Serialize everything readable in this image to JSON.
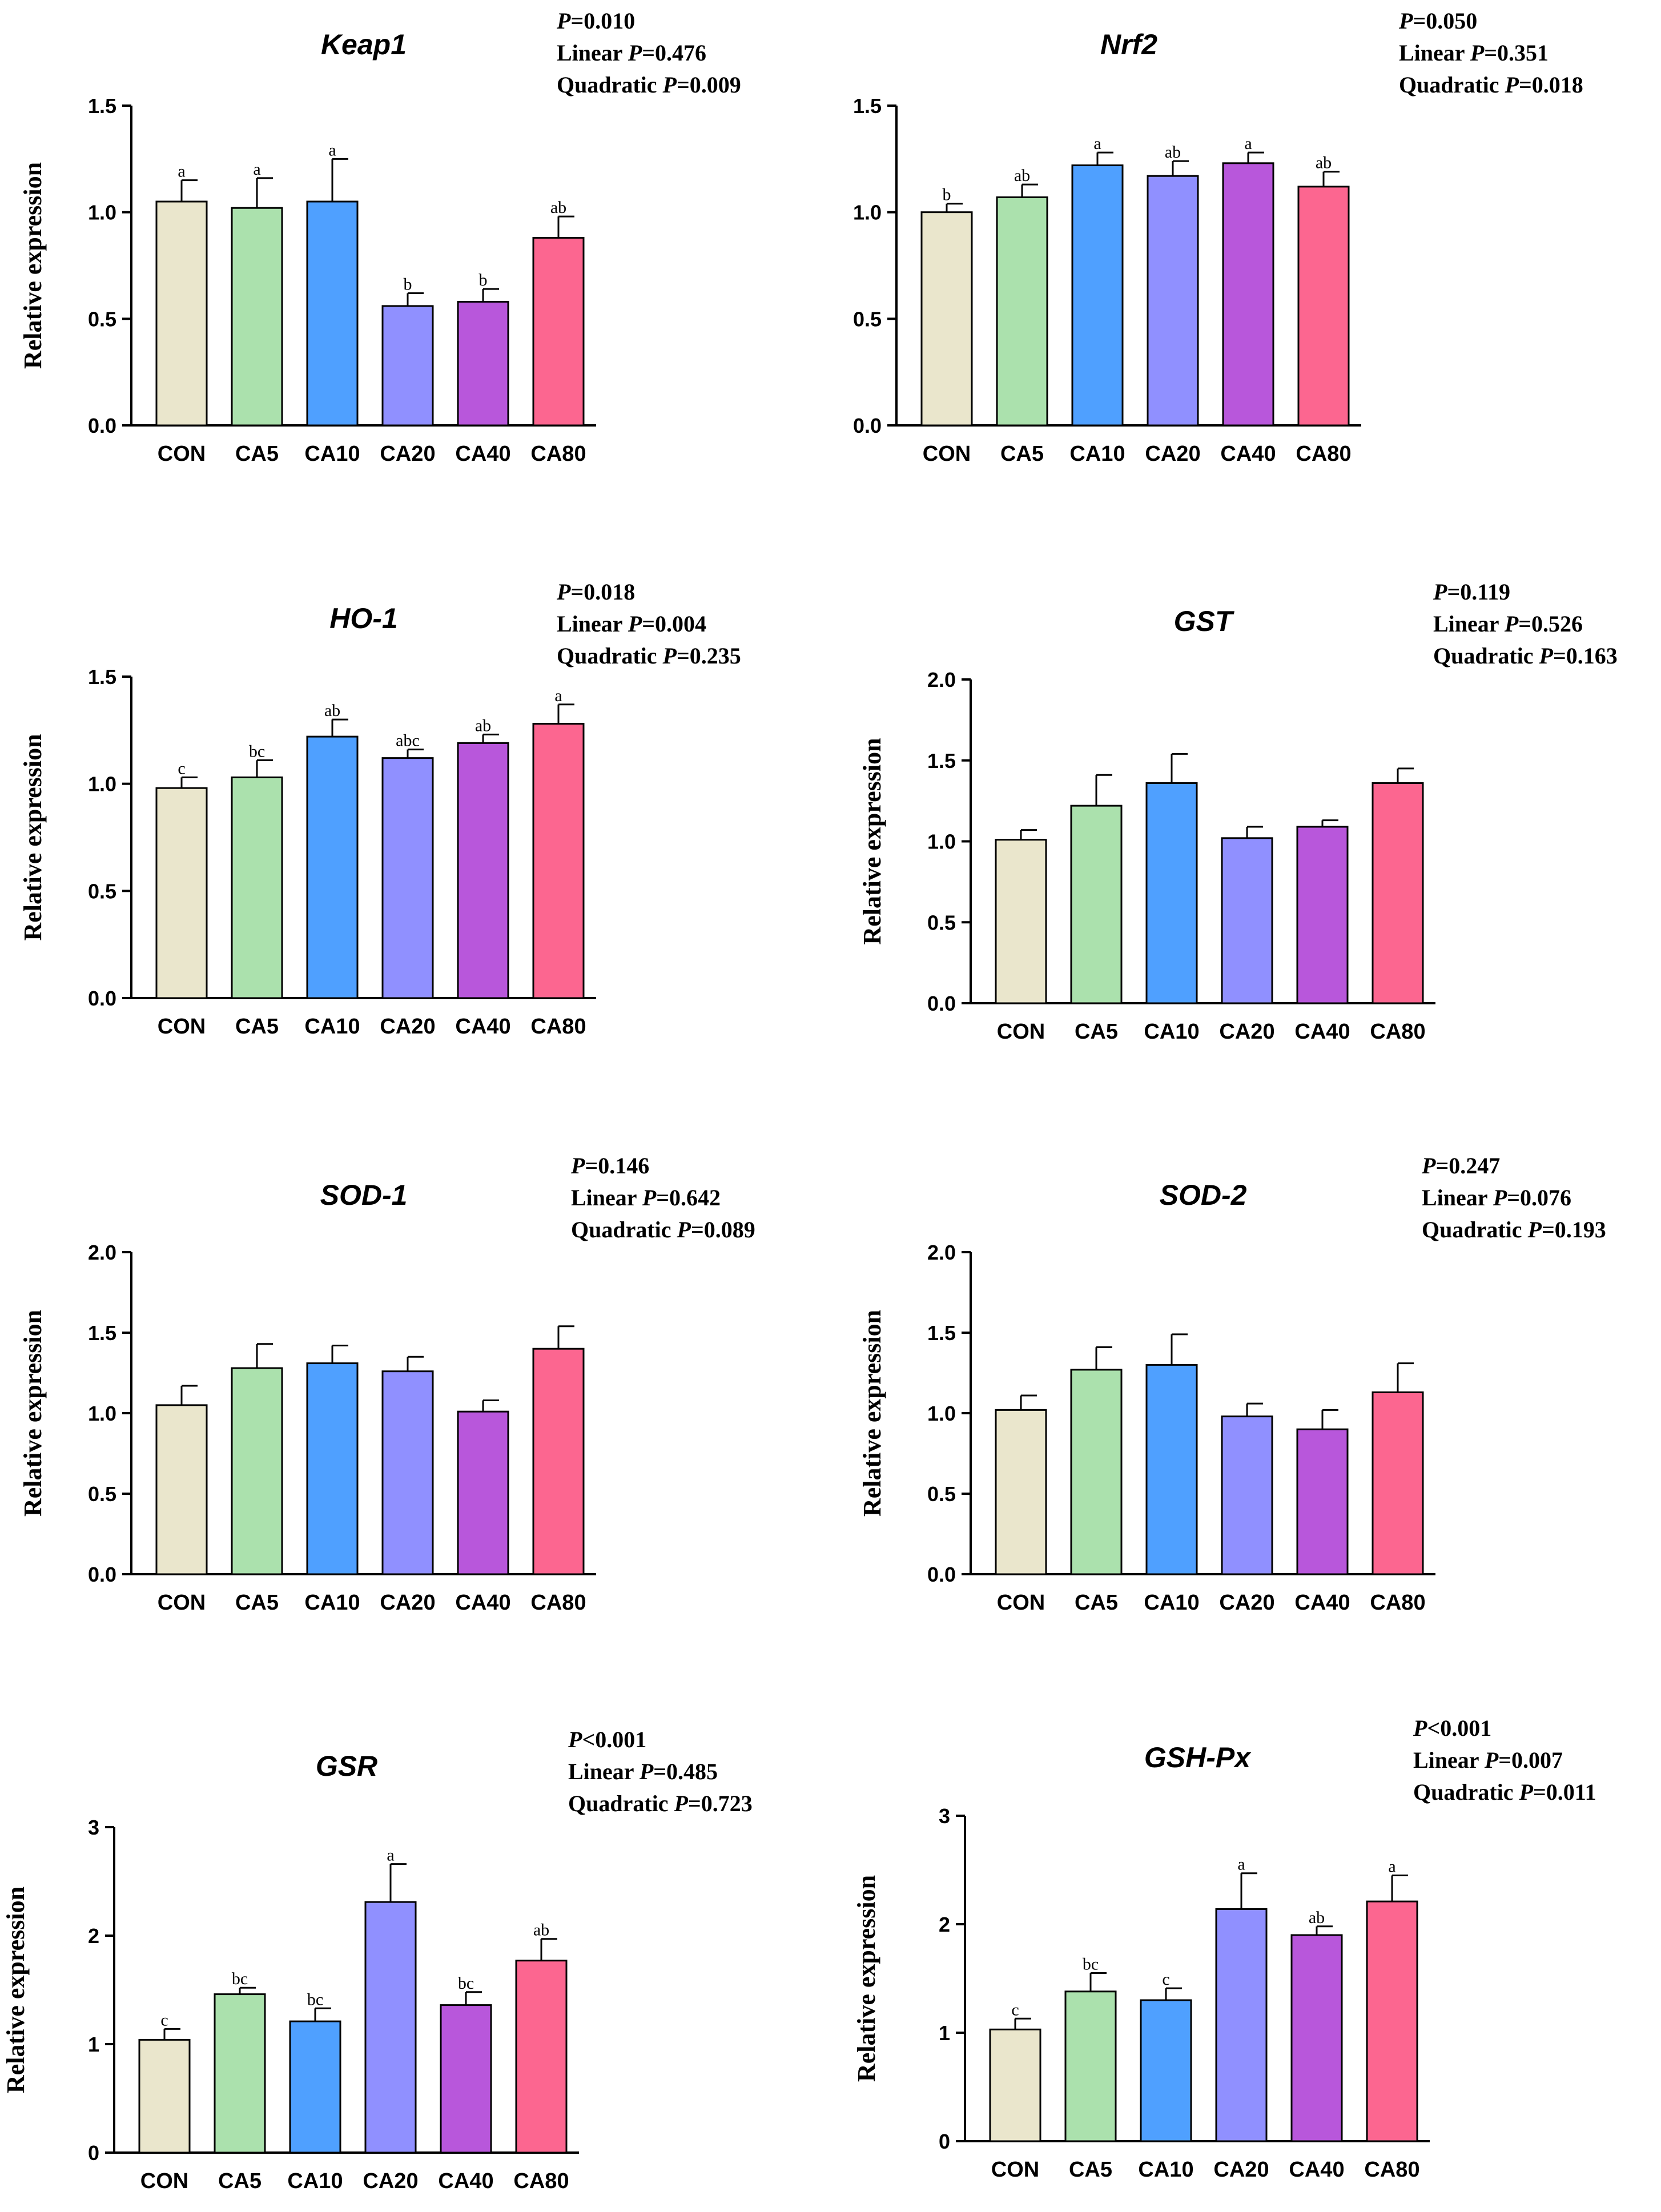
{
  "colors": [
    "#EAE6CC",
    "#ABE1AD",
    "#4FA0FF",
    "#9090FF",
    "#B857DB",
    "#FC6690"
  ],
  "chart_data": [
    {
      "type": "bar",
      "title": "Keap1",
      "stats": [
        "=0.010",
        "Linear ",
        "=0.476",
        "Quadratic ",
        "=0.009"
      ],
      "xlabel": "",
      "ylabel": "Relative expression",
      "ylim": [
        0,
        1.5
      ],
      "yticks": [
        "0.0",
        "0.5",
        "1.0",
        "1.5"
      ],
      "categories": [
        "CON",
        "CA5",
        "CA10",
        "CA20",
        "CA40",
        "CA80"
      ],
      "values": [
        1.05,
        1.02,
        1.05,
        0.56,
        0.58,
        0.88
      ],
      "errors": [
        0.1,
        0.14,
        0.2,
        0.06,
        0.06,
        0.1
      ],
      "letters": [
        "a",
        "a",
        "a",
        "b",
        "b",
        "ab"
      ]
    },
    {
      "type": "bar",
      "title": "Nrf2",
      "stats": [
        "=0.050",
        "Linear ",
        "=0.351",
        "Quadratic ",
        "=0.018"
      ],
      "xlabel": "",
      "ylabel": "Relative expression",
      "ylim": [
        0,
        1.5
      ],
      "yticks": [
        "0.0",
        "0.5",
        "1.0",
        "1.5"
      ],
      "categories": [
        "CON",
        "CA5",
        "CA10",
        "CA20",
        "CA40",
        "CA80"
      ],
      "values": [
        1.0,
        1.07,
        1.22,
        1.17,
        1.23,
        1.12
      ],
      "errors": [
        0.04,
        0.06,
        0.06,
        0.07,
        0.05,
        0.07
      ],
      "letters": [
        "b",
        "ab",
        "a",
        "ab",
        "a",
        "ab"
      ]
    },
    {
      "type": "bar",
      "title": "HO-1",
      "stats": [
        "=0.018",
        "Linear ",
        "=0.004",
        "Quadratic ",
        "=0.235"
      ],
      "xlabel": "",
      "ylabel": "Relative expression",
      "ylim": [
        0,
        1.5
      ],
      "yticks": [
        "0.0",
        "0.5",
        "1.0",
        "1.5"
      ],
      "categories": [
        "CON",
        "CA5",
        "CA10",
        "CA20",
        "CA40",
        "CA80"
      ],
      "values": [
        0.98,
        1.03,
        1.22,
        1.12,
        1.19,
        1.28
      ],
      "errors": [
        0.05,
        0.08,
        0.08,
        0.04,
        0.04,
        0.09
      ],
      "letters": [
        "c",
        "bc",
        "ab",
        "abc",
        "ab",
        "a"
      ]
    },
    {
      "type": "bar",
      "title": "GST",
      "stats": [
        "=0.119",
        "Linear ",
        "=0.526",
        "Quadratic ",
        "=0.163"
      ],
      "xlabel": "",
      "ylabel": "Relative expression",
      "ylim": [
        0,
        2.0
      ],
      "yticks": [
        "0.0",
        "0.5",
        "1.0",
        "1.5",
        "2.0"
      ],
      "categories": [
        "CON",
        "CA5",
        "CA10",
        "CA20",
        "CA40",
        "CA80"
      ],
      "values": [
        1.01,
        1.22,
        1.36,
        1.02,
        1.09,
        1.36
      ],
      "errors": [
        0.06,
        0.19,
        0.18,
        0.07,
        0.04,
        0.09
      ],
      "letters": [
        "",
        "",
        "",
        "",
        "",
        ""
      ]
    },
    {
      "type": "bar",
      "title": "SOD-1",
      "stats": [
        "=0.146",
        "Linear ",
        "=0.642",
        "Quadratic ",
        "=0.089"
      ],
      "xlabel": "",
      "ylabel": "Relative expression",
      "ylim": [
        0,
        2.0
      ],
      "yticks": [
        "0.0",
        "0.5",
        "1.0",
        "1.5",
        "2.0"
      ],
      "categories": [
        "CON",
        "CA5",
        "CA10",
        "CA20",
        "CA40",
        "CA80"
      ],
      "values": [
        1.05,
        1.28,
        1.31,
        1.26,
        1.01,
        1.4
      ],
      "errors": [
        0.12,
        0.15,
        0.11,
        0.09,
        0.07,
        0.14
      ],
      "letters": [
        "",
        "",
        "",
        "",
        "",
        ""
      ]
    },
    {
      "type": "bar",
      "title": "SOD-2",
      "stats": [
        "=0.247",
        "Linear ",
        "=0.076",
        "Quadratic ",
        "=0.193"
      ],
      "xlabel": "",
      "ylabel": "Relative expression",
      "ylim": [
        0,
        2.0
      ],
      "yticks": [
        "0.0",
        "0.5",
        "1.0",
        "1.5",
        "2.0"
      ],
      "categories": [
        "CON",
        "CA5",
        "CA10",
        "CA20",
        "CA40",
        "CA80"
      ],
      "values": [
        1.02,
        1.27,
        1.3,
        0.98,
        0.9,
        1.13
      ],
      "errors": [
        0.09,
        0.14,
        0.19,
        0.08,
        0.12,
        0.18
      ],
      "letters": [
        "",
        "",
        "",
        "",
        "",
        ""
      ]
    },
    {
      "type": "bar",
      "title": "GSR",
      "stats": [
        "<0.001",
        "Linear ",
        "=0.485",
        "Quadratic ",
        "=0.723"
      ],
      "xlabel": "",
      "ylabel": "Relative expression",
      "ylim": [
        0,
        3
      ],
      "yticks": [
        "0",
        "1",
        "2",
        "3"
      ],
      "categories": [
        "CON",
        "CA5",
        "CA10",
        "CA20",
        "CA40",
        "CA80"
      ],
      "values": [
        1.04,
        1.46,
        1.21,
        2.31,
        1.36,
        1.77
      ],
      "errors": [
        0.1,
        0.06,
        0.12,
        0.35,
        0.12,
        0.2
      ],
      "letters": [
        "c",
        "bc",
        "bc",
        "a",
        "bc",
        "ab"
      ]
    },
    {
      "type": "bar",
      "title": "GSH-Px",
      "stats": [
        "<0.001",
        "Linear ",
        "=0.007",
        "Quadratic ",
        "=0.011"
      ],
      "xlabel": "",
      "ylabel": "Relative expression",
      "ylim": [
        0,
        3
      ],
      "yticks": [
        "0",
        "1",
        "2",
        "3"
      ],
      "categories": [
        "CON",
        "CA5",
        "CA10",
        "CA20",
        "CA40",
        "CA80"
      ],
      "values": [
        1.03,
        1.38,
        1.3,
        2.14,
        1.9,
        2.21
      ],
      "errors": [
        0.1,
        0.17,
        0.11,
        0.33,
        0.08,
        0.24
      ],
      "letters": [
        "c",
        "bc",
        "c",
        "a",
        "ab",
        "a"
      ]
    }
  ]
}
